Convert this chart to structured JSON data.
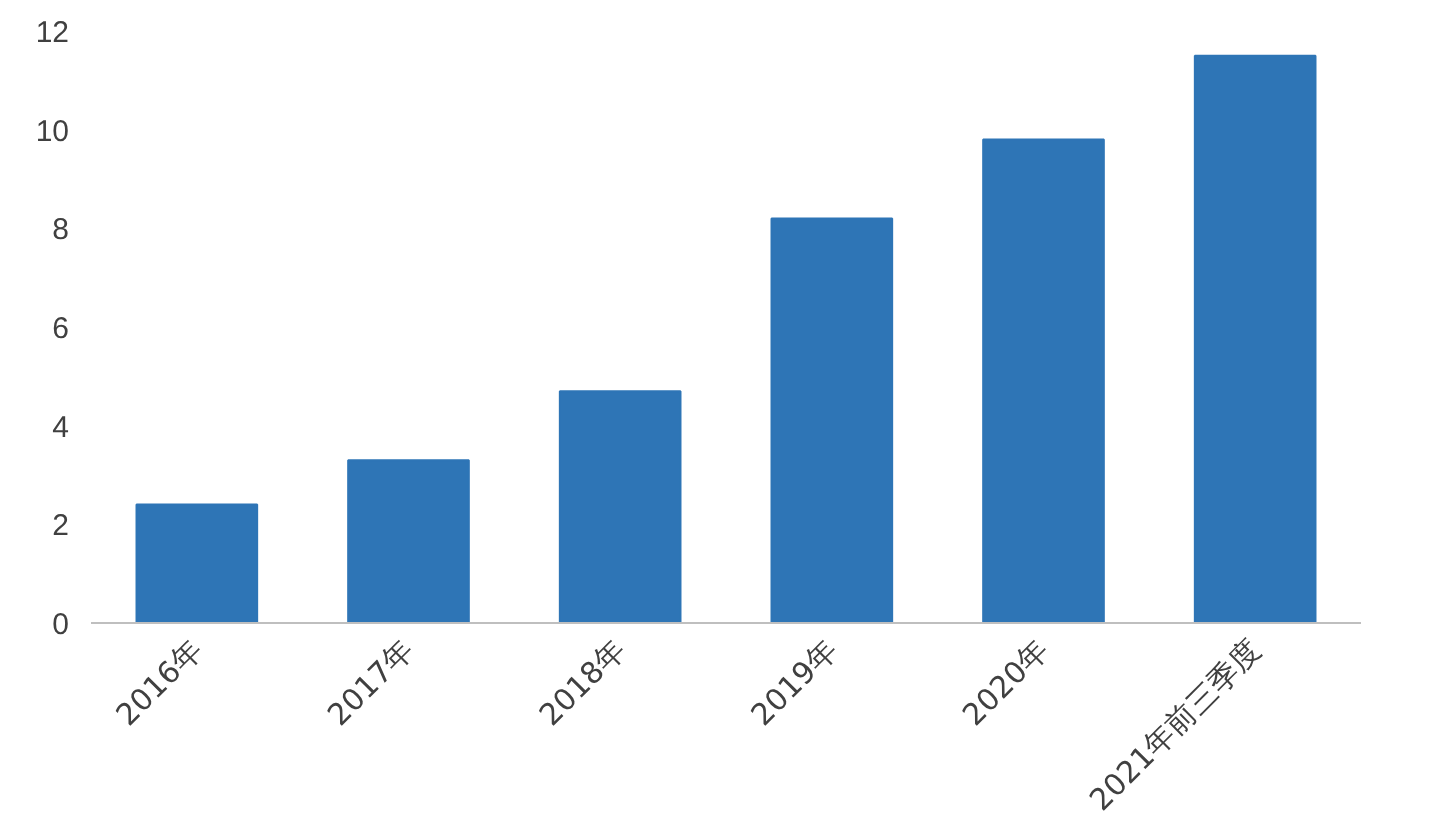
{
  "chart_data": {
    "type": "bar",
    "categories": [
      "2016年",
      "2017年",
      "2018年",
      "2019年",
      "2020年",
      "2021年前三季度"
    ],
    "values": [
      2.4,
      3.3,
      4.7,
      8.2,
      9.8,
      11.5
    ],
    "color": "#2e75b6",
    "ylim": [
      0,
      12
    ],
    "yticks": [
      0,
      2,
      4,
      6,
      8,
      10,
      12
    ],
    "grid": false
  }
}
